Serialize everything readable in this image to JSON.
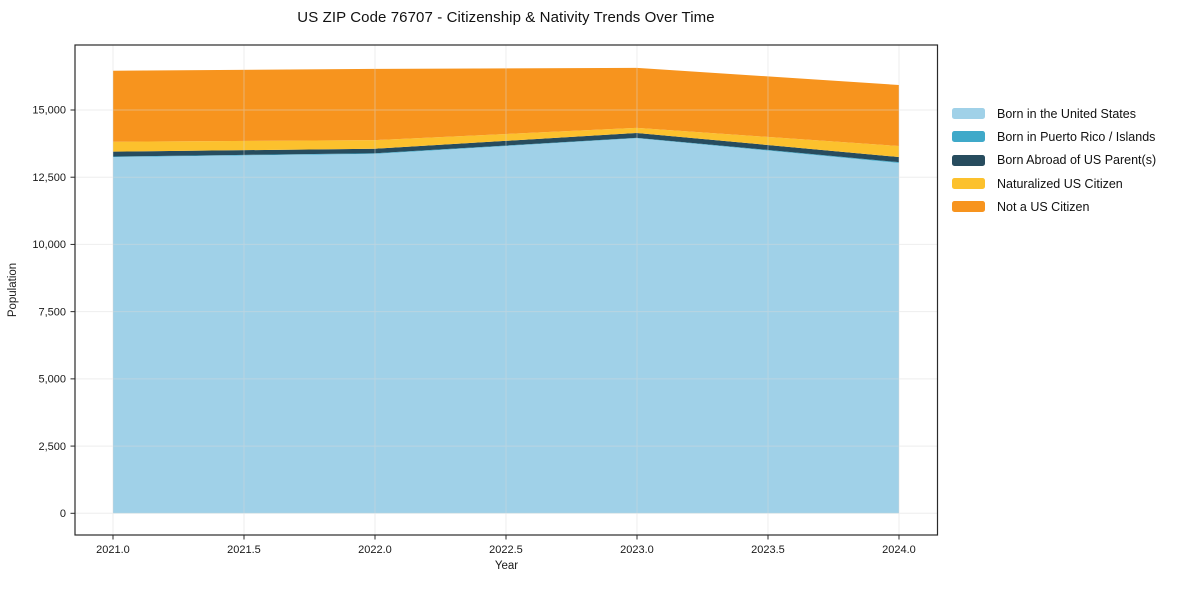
{
  "chart_data": {
    "type": "area",
    "stacked": true,
    "title": "US ZIP Code 76707 - Citizenship & Nativity Trends Over Time",
    "xlabel": "Year",
    "ylabel": "Population",
    "x": [
      2021,
      2022,
      2023,
      2024
    ],
    "series": [
      {
        "name": "Born in the United States",
        "color": "#a0d1e8",
        "values": [
          13250,
          13370,
          13950,
          13030
        ]
      },
      {
        "name": "Born in Puerto Rico / Islands",
        "color": "#3fa9c9",
        "values": [
          20,
          20,
          15,
          30
        ]
      },
      {
        "name": "Born Abroad of US Parent(s)",
        "color": "#274c5e",
        "values": [
          180,
          170,
          180,
          190
        ]
      },
      {
        "name": "Naturalized US Citizen",
        "color": "#fcc12d",
        "values": [
          370,
          320,
          190,
          410
        ]
      },
      {
        "name": "Not a US Citizen",
        "color": "#f7941e",
        "values": [
          2640,
          2650,
          2230,
          2270
        ]
      }
    ],
    "x_axis": {
      "min": 2020.855,
      "max": 2024.147,
      "ticks": [
        2021.0,
        2021.5,
        2022.0,
        2022.5,
        2023.0,
        2023.5,
        2024.0
      ],
      "tick_format": "1dp"
    },
    "y_axis": {
      "min": -807,
      "max": 17417,
      "ticks": [
        0,
        2500,
        5000,
        7500,
        10000,
        12500,
        15000
      ],
      "tick_format": "thousands"
    },
    "legend_position": "right-outside",
    "grid": true,
    "style": {
      "axis_color": "#2a2a2a",
      "grid_color": "#d9d9d9",
      "background": "#ffffff"
    }
  }
}
